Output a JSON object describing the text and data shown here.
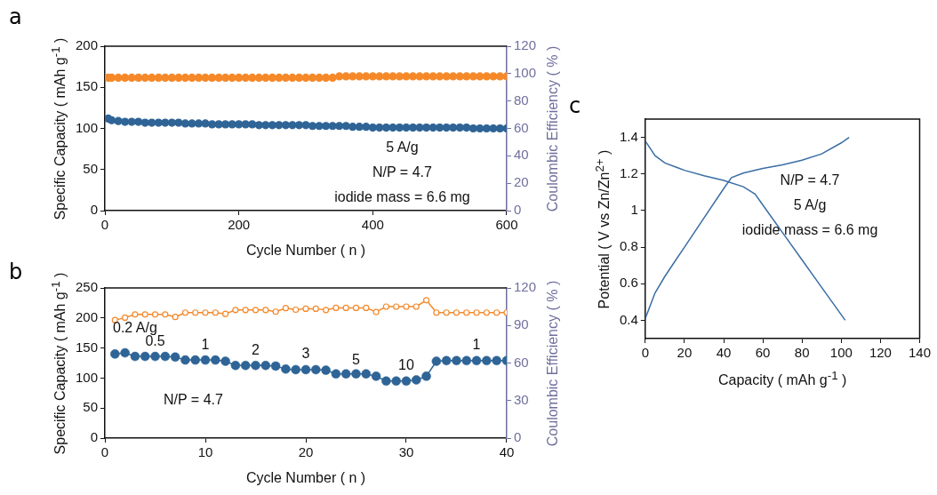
{
  "chart_data": [
    {
      "type": "scatter",
      "title": "a",
      "xlabel": "Cycle Number ( n )",
      "ylabel": "Specific Capacity ( mAh g$^{-1}$ )",
      "y2label": "Coulombic Efficiency ( % )",
      "marker": "circle",
      "x": [
        5,
        10,
        20,
        30,
        40,
        50,
        60,
        70,
        80,
        90,
        100,
        110,
        120,
        130,
        140,
        150,
        160,
        170,
        180,
        190,
        200,
        210,
        220,
        230,
        240,
        250,
        260,
        270,
        280,
        290,
        300,
        310,
        320,
        330,
        340,
        350,
        360,
        370,
        380,
        390,
        400,
        410,
        420,
        430,
        440,
        450,
        460,
        470,
        480,
        490,
        500,
        510,
        520,
        530,
        540,
        550,
        560,
        570,
        580,
        590,
        600
      ],
      "xlim": [
        0,
        600
      ],
      "xticks": [
        0,
        200,
        400,
        600
      ],
      "ylim": [
        0,
        200
      ],
      "yticks": [
        0,
        50,
        100,
        150,
        200
      ],
      "y2lim": [
        0,
        120
      ],
      "y2ticks": [
        0,
        20,
        40,
        60,
        80,
        100,
        120
      ],
      "series": [
        {
          "color": "#f5892a",
          "axis": "y2",
          "values": [
            97,
            97,
            97,
            97,
            97,
            97,
            97,
            97,
            97,
            97,
            97,
            97,
            97,
            97,
            97,
            97,
            97,
            97,
            97,
            97,
            97,
            97,
            97,
            97,
            97,
            97,
            97,
            97,
            97,
            97,
            97,
            97,
            97,
            97,
            97,
            98,
            98,
            98,
            98,
            98,
            98,
            98,
            98,
            98,
            98,
            98,
            98,
            98,
            98,
            98,
            98,
            98,
            98,
            98,
            98,
            98,
            98,
            98,
            98,
            98,
            98
          ]
        },
        {
          "color": "#2f6496",
          "values": [
            112,
            110,
            109,
            108,
            108,
            108,
            107,
            107,
            107,
            107,
            107,
            107,
            106,
            106,
            106,
            106,
            105,
            105,
            105,
            105,
            105,
            105,
            105,
            104,
            104,
            104,
            104,
            104,
            104,
            104,
            104,
            103,
            103,
            103,
            103,
            103,
            103,
            102,
            102,
            102,
            101,
            101,
            101,
            101,
            101,
            101,
            101,
            101,
            101,
            101,
            101,
            101,
            101,
            101,
            101,
            100,
            100,
            100,
            100,
            100,
            100
          ]
        }
      ],
      "annotations": [
        "5 A/g",
        "N/P = 4.7",
        "iodide mass = 6.6 mg"
      ]
    },
    {
      "type": "line",
      "title": "b",
      "xlabel": "Cycle Number ( n )",
      "ylabel": "Specific Capacity ( mAh g$^{-1}$ )",
      "y2label": "Coulombic Efficiency ( % )",
      "marker": "circle",
      "x": [
        1,
        2,
        3,
        4,
        5,
        6,
        7,
        8,
        9,
        10,
        11,
        12,
        13,
        14,
        15,
        16,
        17,
        18,
        19,
        20,
        21,
        22,
        23,
        24,
        25,
        26,
        27,
        28,
        29,
        30,
        31,
        32,
        33,
        34,
        35,
        36,
        37,
        38,
        39,
        40
      ],
      "xlim": [
        0,
        40
      ],
      "xticks": [
        0,
        10,
        20,
        30,
        40
      ],
      "ylim": [
        0,
        250
      ],
      "yticks": [
        0,
        50,
        100,
        150,
        200,
        250
      ],
      "y2lim": [
        0,
        120
      ],
      "y2ticks": [
        0,
        30,
        60,
        90,
        120
      ],
      "series": [
        {
          "color": "#f5892a",
          "axis": "y2",
          "values": [
            94.3,
            96.3,
            98.8,
            98.8,
            98.8,
            98.8,
            96.8,
            100.3,
            100.3,
            100.3,
            100.3,
            99.3,
            102.4,
            102.4,
            102.4,
            102.4,
            101,
            103.9,
            102.6,
            103.4,
            103.4,
            102.4,
            104.1,
            104.1,
            104.1,
            104.1,
            100.8,
            105.1,
            105.1,
            105.1,
            105.1,
            110.2,
            100.3,
            100.3,
            100.3,
            100.3,
            100.3,
            100.3,
            100.3,
            100.3
          ]
        },
        {
          "color": "#2f6496",
          "values": [
            140,
            142,
            136,
            136,
            136,
            136,
            135,
            130,
            130,
            130,
            130,
            128,
            121,
            121,
            121,
            121,
            120,
            115,
            114,
            114,
            114,
            113,
            107,
            107,
            107,
            107,
            103,
            95,
            95,
            95,
            97,
            103,
            128,
            129,
            129,
            129,
            129,
            129,
            129,
            129
          ]
        }
      ],
      "annotations": [
        "0.2 A/g",
        "0.5",
        "1",
        "2",
        "3",
        "5",
        "10",
        "1",
        "N/P = 4.7"
      ]
    },
    {
      "type": "line",
      "title": "c",
      "xlabel": "Capacity ( mAh g$^{-1}$ )",
      "ylabel": "Potential ( V vs Zn/Zn$^{2+}$ )",
      "marker": "none",
      "xlim": [
        0,
        140
      ],
      "xticks": [
        0,
        20,
        40,
        60,
        80,
        100,
        120,
        140
      ],
      "ylim": [
        0.3,
        1.5
      ],
      "yticks": [
        0.4,
        0.6,
        0.8,
        1.0,
        1.2,
        1.4
      ],
      "series": [
        {
          "color": "#3a6ea5",
          "x": [
            0,
            5,
            10,
            20,
            30,
            40,
            44,
            50,
            60,
            70,
            80,
            90,
            100,
            104
          ],
          "values": [
            0.41,
            0.55,
            0.64,
            0.8,
            0.96,
            1.12,
            1.18,
            1.205,
            1.23,
            1.25,
            1.275,
            1.31,
            1.37,
            1.4
          ]
        },
        {
          "color": "#3a6ea5",
          "x": [
            0,
            5,
            10,
            20,
            30,
            40,
            50,
            56,
            60,
            70,
            80,
            90,
            102
          ],
          "values": [
            1.38,
            1.3,
            1.26,
            1.22,
            1.19,
            1.165,
            1.13,
            1.09,
            1.03,
            0.88,
            0.73,
            0.58,
            0.4
          ]
        }
      ],
      "annotations": [
        "N/P = 4.7",
        "5 A/g",
        "iodide mass = 6.6 mg"
      ]
    }
  ]
}
